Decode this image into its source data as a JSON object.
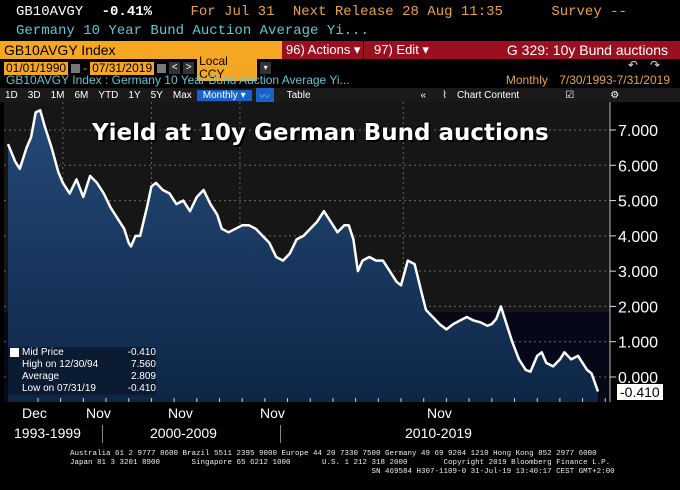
{
  "header": {
    "ticker": "GB10AVGY",
    "change": "-0.41%",
    "for_label": "For Jul 31",
    "next_release": "Next Release 28 Aug 11:35",
    "survey": "Survey --",
    "description": "Germany 10 Year Bund Auction Average Yi..."
  },
  "command_bar": {
    "security": "GB10AVGY Index",
    "actions": "96) Actions ▾",
    "edit": "97) Edit ▾",
    "graph_title": "G 329: 10y Bund auctions"
  },
  "date_range": {
    "start": "01/01/1990",
    "end": "07/31/2019",
    "currency": "Local CCY",
    "prev": "<",
    "next": ">"
  },
  "undo_icons": [
    "undo-icon",
    "redo-icon"
  ],
  "info_line": {
    "left": "GB10AVGY Index : Germany 10 Year Bund Auction Average Yi...",
    "frequency": "Monthly",
    "period": "7/30/1993-7/31/2019"
  },
  "toolbar": {
    "ranges": [
      "1D",
      "3D",
      "1M",
      "6M",
      "YTD",
      "1Y",
      "5Y",
      "Max"
    ],
    "frequency": "Monthly ▾",
    "table": "Table",
    "collapse": "«",
    "chart_content": "Chart Content"
  },
  "legend": {
    "rows": [
      {
        "label": "Mid Price",
        "value": "-0.410"
      },
      {
        "label": "High on 12/30/94",
        "value": "7.560"
      },
      {
        "label": "Average",
        "value": "2.809"
      },
      {
        "label": "Low on 07/31/19",
        "value": "-0.410"
      }
    ]
  },
  "last_value_label": "-0.410",
  "x_axis": {
    "months": [
      "Dec",
      "Nov",
      "Nov",
      "Nov",
      "Nov"
    ],
    "periods": [
      "1993-1999",
      "2000-2009",
      "2010-2019"
    ]
  },
  "footer": {
    "line1": "Australia 61 2 9777 8600 Brazil 5511 2395 9000 Europe 44 20 7330 7500 Germany 49 69 9204 1210 Hong Kong 852 2977 6000",
    "line2": "Japan 81 3 3201 8900       Singapore 65 6212 1000       U.S. 1 212 318 2000        Copyright 2019 Bloomberg Finance L.P.",
    "line3": "                                                                   SN 469584 H307-1109-0 31-Jul-19 13:40:17 CEST GMT+2:00"
  },
  "colors": {
    "accent_orange": "#f5a623",
    "accent_red": "#9b1020",
    "cyan_text": "#5ec8d8",
    "area_fill": "#1b3a63",
    "line": "#ffffff"
  },
  "chart_data": {
    "type": "area",
    "title": "Yield at 10y German Bund auctions",
    "xlabel": "",
    "ylabel": "",
    "ylim": [
      -0.5,
      7.5
    ],
    "y_ticks": [
      0,
      1,
      2,
      3,
      4,
      5,
      6,
      7
    ],
    "y_tick_labels": [
      "0.000",
      "1.000",
      "2.000",
      "3.000",
      "4.000",
      "5.000",
      "6.000",
      "7.000"
    ],
    "grid": true,
    "x_range": [
      1993.58,
      2019.58
    ],
    "series": [
      {
        "name": "Mid Price",
        "x": [
          1993.58,
          1993.9,
          1994.1,
          1994.4,
          1994.6,
          1994.8,
          1995.0,
          1995.2,
          1995.5,
          1995.8,
          1996.0,
          1996.3,
          1996.6,
          1996.9,
          1997.2,
          1997.5,
          1997.8,
          1998.1,
          1998.4,
          1998.7,
          1998.9,
          1999.0,
          1999.2,
          1999.4,
          1999.7,
          1999.9,
          2000.1,
          2000.4,
          2000.7,
          2001.0,
          2001.3,
          2001.6,
          2001.9,
          2002.2,
          2002.5,
          2002.8,
          2003.0,
          2003.3,
          2003.6,
          2003.9,
          2004.2,
          2004.5,
          2004.8,
          2005.1,
          2005.4,
          2005.7,
          2006.0,
          2006.3,
          2006.6,
          2006.9,
          2007.2,
          2007.5,
          2007.8,
          2008.1,
          2008.4,
          2008.6,
          2008.8,
          2009.0,
          2009.2,
          2009.5,
          2009.8,
          2010.1,
          2010.4,
          2010.7,
          2010.9,
          2011.2,
          2011.5,
          2011.8,
          2012.0,
          2012.3,
          2012.6,
          2012.9,
          2013.2,
          2013.5,
          2013.8,
          2014.1,
          2014.4,
          2014.7,
          2014.9,
          2015.1,
          2015.3,
          2015.5,
          2015.8,
          2016.1,
          2016.4,
          2016.6,
          2016.9,
          2017.1,
          2017.3,
          2017.6,
          2017.9,
          2018.1,
          2018.4,
          2018.7,
          2018.9,
          2019.1,
          2019.3,
          2019.58
        ],
        "values": [
          6.6,
          6.1,
          5.9,
          6.5,
          6.8,
          7.5,
          7.56,
          7.1,
          6.5,
          5.8,
          5.5,
          5.2,
          5.6,
          5.1,
          5.7,
          5.5,
          5.2,
          4.8,
          4.5,
          4.2,
          3.8,
          3.7,
          4.0,
          4.0,
          4.8,
          5.4,
          5.5,
          5.3,
          5.2,
          4.9,
          5.0,
          4.7,
          5.1,
          5.3,
          4.9,
          4.6,
          4.2,
          4.1,
          4.2,
          4.3,
          4.3,
          4.2,
          4.0,
          3.8,
          3.4,
          3.3,
          3.5,
          3.9,
          4.0,
          4.2,
          4.4,
          4.7,
          4.4,
          4.1,
          4.3,
          4.3,
          3.9,
          3.0,
          3.3,
          3.4,
          3.3,
          3.3,
          3.0,
          2.7,
          2.6,
          3.3,
          3.2,
          2.4,
          1.9,
          1.7,
          1.5,
          1.35,
          1.5,
          1.6,
          1.7,
          1.6,
          1.55,
          1.45,
          1.5,
          1.65,
          2.0,
          1.6,
          1.0,
          0.5,
          0.2,
          0.15,
          0.6,
          0.7,
          0.4,
          0.3,
          0.5,
          0.7,
          0.5,
          0.6,
          0.4,
          0.2,
          0.1,
          -0.41
        ]
      }
    ],
    "last_value": -0.41,
    "legend_position": "bottom-left",
    "stats": {
      "high": 7.56,
      "high_date": "12/30/94",
      "average": 2.809,
      "low": -0.41,
      "low_date": "07/31/19"
    }
  }
}
